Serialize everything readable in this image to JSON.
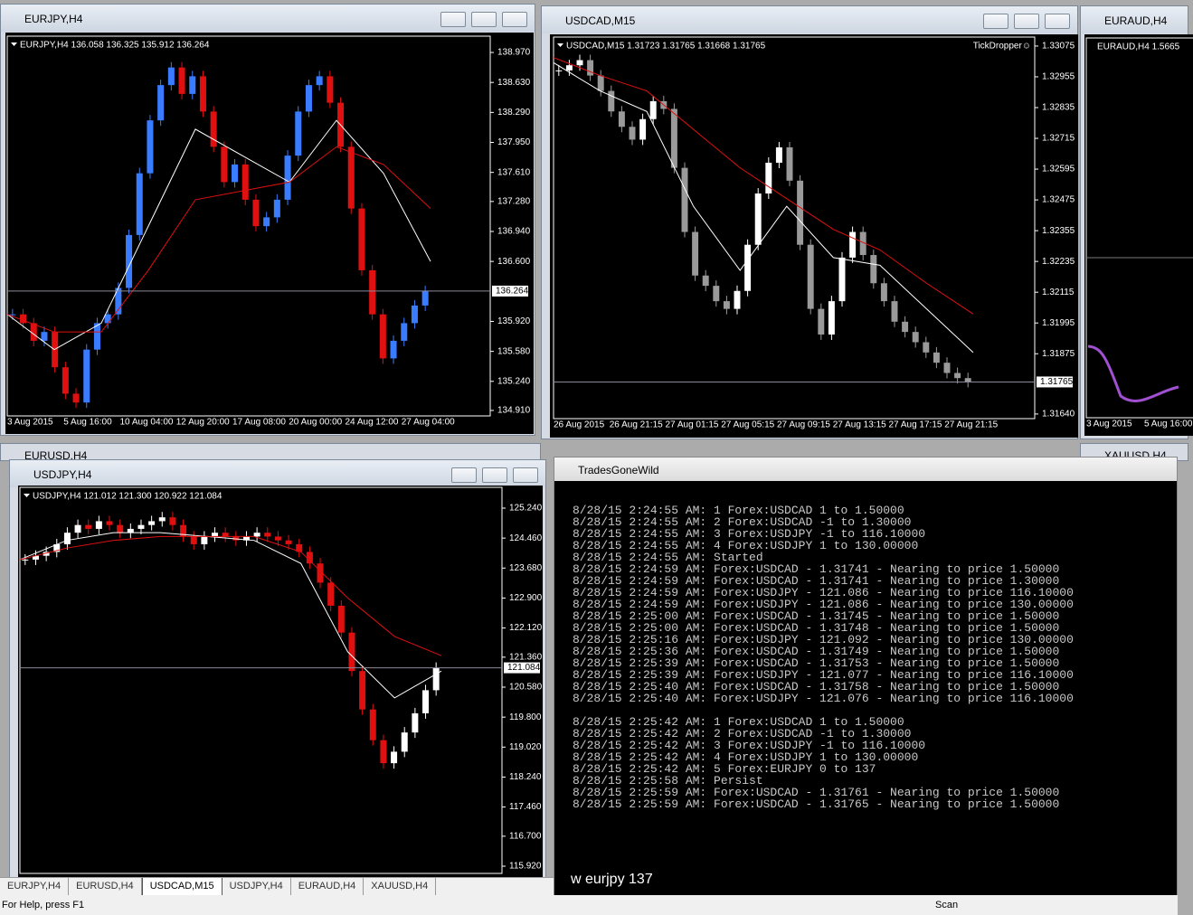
{
  "charts": [
    {
      "title": "EURJPY,H4",
      "header": "EURJPY,H4  136.058 136.325 135.912 136.264",
      "ylim": [
        134.848,
        139.155
      ],
      "yticks": [
        {
          "value": 138.97,
          "label": "138.970"
        },
        {
          "value": 138.63,
          "label": "138.630"
        },
        {
          "value": 138.29,
          "label": "138.290"
        },
        {
          "value": 137.95,
          "label": "137.950"
        },
        {
          "value": 137.61,
          "label": "137.610"
        },
        {
          "value": 137.28,
          "label": "137.280"
        },
        {
          "value": 136.94,
          "label": "136.940"
        },
        {
          "value": 136.6,
          "label": "136.600"
        },
        {
          "value": 135.92,
          "label": "135.920"
        },
        {
          "value": 135.58,
          "label": "135.580"
        },
        {
          "value": 135.24,
          "label": "135.240"
        },
        {
          "value": 134.91,
          "label": "134.910"
        }
      ],
      "price": {
        "value": 136.264,
        "label": "136.264"
      },
      "xlabels": [
        "3 Aug 2015",
        "5 Aug 16:00",
        "10 Aug 04:00",
        "12 Aug 20:00",
        "17 Aug 08:00",
        "20 Aug 00:00",
        "24 Aug 12:00",
        "27 Aug 04:00"
      ],
      "up_color": "#3a7cff",
      "down_color": "#e01010",
      "fast_color": "#ffffff",
      "slow_color": "#e01010",
      "closes": [
        136.0,
        135.9,
        135.7,
        135.8,
        135.4,
        135.1,
        135.0,
        135.6,
        135.9,
        136.0,
        136.3,
        136.9,
        137.6,
        138.2,
        138.6,
        138.8,
        138.5,
        138.7,
        138.3,
        137.9,
        137.5,
        137.7,
        137.3,
        137.0,
        137.1,
        137.3,
        137.8,
        138.3,
        138.6,
        138.7,
        138.4,
        137.9,
        137.2,
        136.5,
        136.0,
        135.5,
        135.7,
        135.9,
        136.1,
        136.264
      ],
      "ma_fast": [
        136.0,
        135.6,
        135.9,
        137.0,
        138.1,
        137.8,
        137.5,
        138.2,
        137.6,
        136.6
      ],
      "ma_slow": [
        136.0,
        135.8,
        135.8,
        136.5,
        137.3,
        137.4,
        137.5,
        137.9,
        137.7,
        137.2
      ]
    },
    {
      "title": "USDCAD,M15",
      "header": "USDCAD,M15  1.31723 1.31765 1.31668 1.31765",
      "indicator": "TickDropper☺",
      "ylim": [
        1.31622,
        1.3311
      ],
      "yticks": [
        {
          "value": 1.33075,
          "label": "1.33075"
        },
        {
          "value": 1.32955,
          "label": "1.32955"
        },
        {
          "value": 1.32835,
          "label": "1.32835"
        },
        {
          "value": 1.32715,
          "label": "1.32715"
        },
        {
          "value": 1.32595,
          "label": "1.32595"
        },
        {
          "value": 1.32475,
          "label": "1.32475"
        },
        {
          "value": 1.32355,
          "label": "1.32355"
        },
        {
          "value": 1.32235,
          "label": "1.32235"
        },
        {
          "value": 1.32115,
          "label": "1.32115"
        },
        {
          "value": 1.31995,
          "label": "1.31995"
        },
        {
          "value": 1.31875,
          "label": "1.31875"
        },
        {
          "value": 1.3164,
          "label": "1.31640"
        }
      ],
      "price": {
        "value": 1.31765,
        "label": "1.31765"
      },
      "xlabels": [
        "26 Aug 2015",
        "26 Aug 21:15",
        "27 Aug 01:15",
        "27 Aug 05:15",
        "27 Aug 09:15",
        "27 Aug 13:15",
        "27 Aug 17:15",
        "27 Aug 21:15"
      ],
      "up_color": "#ffffff",
      "down_color": "#9a9a9a",
      "fast_color": "#ffffff",
      "slow_color": "#e01010",
      "closes": [
        1.3298,
        1.33,
        1.3302,
        1.3296,
        1.329,
        1.3282,
        1.3276,
        1.3271,
        1.3279,
        1.3286,
        1.3283,
        1.326,
        1.3235,
        1.3218,
        1.3214,
        1.3208,
        1.3205,
        1.3212,
        1.323,
        1.325,
        1.3262,
        1.3268,
        1.3255,
        1.323,
        1.3205,
        1.3195,
        1.3208,
        1.3225,
        1.3235,
        1.3226,
        1.3215,
        1.3208,
        1.32,
        1.3196,
        1.3192,
        1.3188,
        1.3184,
        1.318,
        1.3178,
        1.31765
      ],
      "ma_fast": [
        1.3301,
        1.329,
        1.3282,
        1.3245,
        1.322,
        1.3245,
        1.3225,
        1.3222,
        1.3205,
        1.3188
      ],
      "ma_slow": [
        1.3303,
        1.3296,
        1.329,
        1.3275,
        1.326,
        1.3248,
        1.3236,
        1.3228,
        1.3215,
        1.3203
      ]
    },
    {
      "title": "USDJPY,H4",
      "header": "USDJPY,H4  121.012 121.300 120.922 121.084",
      "ylim": [
        115.732,
        125.781
      ],
      "yticks": [
        {
          "value": 125.24,
          "label": "125.240"
        },
        {
          "value": 124.46,
          "label": "124.460"
        },
        {
          "value": 123.68,
          "label": "123.680"
        },
        {
          "value": 122.9,
          "label": "122.900"
        },
        {
          "value": 122.12,
          "label": "122.120"
        },
        {
          "value": 121.36,
          "label": "121.360"
        },
        {
          "value": 120.58,
          "label": "120.580"
        },
        {
          "value": 119.8,
          "label": "119.800"
        },
        {
          "value": 119.02,
          "label": "119.020"
        },
        {
          "value": 118.24,
          "label": "118.240"
        },
        {
          "value": 117.46,
          "label": "117.460"
        },
        {
          "value": 116.7,
          "label": "116.700"
        },
        {
          "value": 115.92,
          "label": "115.920"
        }
      ],
      "price": {
        "value": 121.084,
        "label": "121.084"
      },
      "xlabels": [],
      "up_color": "#ffffff",
      "down_color": "#e01010",
      "fast_color": "#ffffff",
      "slow_color": "#e01010",
      "closes": [
        123.9,
        124.0,
        124.1,
        124.3,
        124.6,
        124.8,
        124.7,
        124.9,
        124.8,
        124.6,
        124.7,
        124.8,
        124.9,
        125.0,
        124.8,
        124.5,
        124.3,
        124.5,
        124.6,
        124.5,
        124.4,
        124.5,
        124.6,
        124.5,
        124.4,
        124.3,
        124.1,
        123.8,
        123.3,
        122.7,
        122.0,
        121.0,
        120.0,
        119.2,
        118.6,
        118.9,
        119.4,
        119.9,
        120.5,
        121.084
      ],
      "ma_fast": [
        123.9,
        124.4,
        124.6,
        124.6,
        124.5,
        124.4,
        123.8,
        121.5,
        120.3,
        121.0
      ],
      "ma_slow": [
        123.9,
        124.2,
        124.4,
        124.5,
        124.5,
        124.5,
        124.1,
        122.9,
        121.9,
        121.4
      ]
    }
  ],
  "euraud": {
    "title": "EURAUD,H4",
    "header": "EURAUD,H4  1.5665",
    "xlabels": [
      "3 Aug 2015",
      "5 Aug 16:00"
    ]
  },
  "background_windows": [
    "EURUSD,H4",
    "XAUUSD,H4"
  ],
  "console": {
    "title": "TradesGoneWild",
    "log_blocks": [
      [
        "8/28/15 2:24:55 AM: 1 Forex:USDCAD 1 to 1.50000",
        "8/28/15 2:24:55 AM: 2 Forex:USDCAD -1 to 1.30000",
        "8/28/15 2:24:55 AM: 3 Forex:USDJPY -1 to 116.10000",
        "8/28/15 2:24:55 AM: 4 Forex:USDJPY 1 to 130.00000",
        "8/28/15 2:24:55 AM: Started",
        "8/28/15 2:24:59 AM: Forex:USDCAD - 1.31741 - Nearing to price 1.50000",
        "8/28/15 2:24:59 AM: Forex:USDCAD - 1.31741 - Nearing to price 1.30000",
        "8/28/15 2:24:59 AM: Forex:USDJPY - 121.086 - Nearing to price 116.10000",
        "8/28/15 2:24:59 AM: Forex:USDJPY - 121.086 - Nearing to price 130.00000",
        "8/28/15 2:25:00 AM: Forex:USDCAD - 1.31745 - Nearing to price 1.50000",
        "8/28/15 2:25:00 AM: Forex:USDCAD - 1.31748 - Nearing to price 1.50000",
        "8/28/15 2:25:16 AM: Forex:USDJPY - 121.092 - Nearing to price 130.00000",
        "8/28/15 2:25:36 AM: Forex:USDCAD - 1.31749 - Nearing to price 1.50000",
        "8/28/15 2:25:39 AM: Forex:USDCAD - 1.31753 - Nearing to price 1.50000",
        "8/28/15 2:25:39 AM: Forex:USDJPY - 121.077 - Nearing to price 116.10000",
        "8/28/15 2:25:40 AM: Forex:USDCAD - 1.31758 - Nearing to price 1.50000",
        "8/28/15 2:25:40 AM: Forex:USDJPY - 121.076 - Nearing to price 116.10000"
      ],
      [
        "8/28/15 2:25:42 AM: 1 Forex:USDCAD 1 to 1.50000",
        "8/28/15 2:25:42 AM: 2 Forex:USDCAD -1 to 1.30000",
        "8/28/15 2:25:42 AM: 3 Forex:USDJPY -1 to 116.10000",
        "8/28/15 2:25:42 AM: 4 Forex:USDJPY 1 to 130.00000",
        "8/28/15 2:25:42 AM: 5 Forex:EURJPY 0 to 137",
        "8/28/15 2:25:58 AM: Persist",
        "8/28/15 2:25:59 AM: Forex:USDCAD - 1.31761 - Nearing to price 1.50000",
        "8/28/15 2:25:59 AM: Forex:USDCAD - 1.31765 - Nearing to price 1.50000"
      ]
    ],
    "input": "w eurjpy 137"
  },
  "tabs": [
    "EURJPY,H4",
    "EURUSD,H4",
    "USDCAD,M15",
    "USDJPY,H4",
    "EURAUD,H4",
    "XAUUSD,H4"
  ],
  "status": "For Help, press F1",
  "status_right": "Scan"
}
